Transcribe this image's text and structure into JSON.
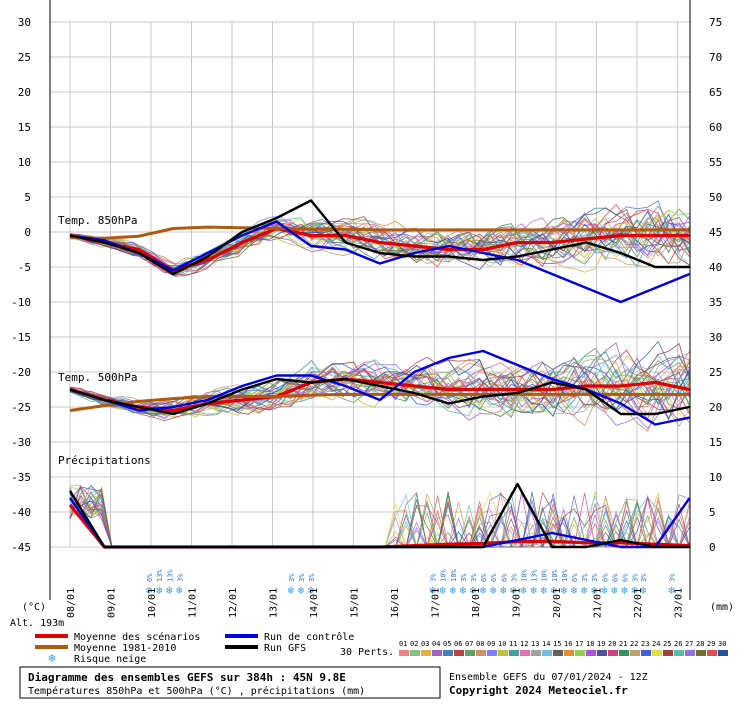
{
  "chart_data": {
    "type": "line",
    "title": "Diagramme des ensembles GEFS sur 384h : 45N 9.8E",
    "subtitle": "Températures 850hPa et 500hPa (°C) , précipitations (mm)",
    "run_info": "Ensemble GEFS du 07/01/2024 - 12Z",
    "copyright": "Copyright 2024 Meteociel.fr",
    "y_left_label": "(°C)",
    "y_right_label": "(mm)",
    "altitude": "Alt. 193m",
    "y_left_range": [
      -45,
      30
    ],
    "y_left_ticks": [
      "30",
      "25",
      "20",
      "15",
      "10",
      "5",
      "0",
      "-5",
      "-10",
      "-15",
      "-20",
      "-25",
      "-30",
      "-35",
      "-40",
      "-45"
    ],
    "y_right_ticks": [
      "75",
      "70",
      "65",
      "60",
      "55",
      "50",
      "45",
      "40",
      "35",
      "30",
      "25",
      "20",
      "15",
      "10",
      "5",
      "0"
    ],
    "x_dates": [
      "08/01",
      "09/01",
      "10/01",
      "11/01",
      "12/01",
      "13/01",
      "14/01",
      "15/01",
      "16/01",
      "17/01",
      "18/01",
      "19/01",
      "20/01",
      "21/01",
      "22/01",
      "23/01"
    ],
    "panel_labels": {
      "t850": "Temp. 850hPa",
      "t500": "Temp. 500hPa",
      "precip": "Précipitations"
    },
    "snow_risk": [
      {
        "day": 2.1,
        "labels": [
          "6%",
          "13%",
          "13%",
          "3%"
        ]
      },
      {
        "day": 5.6,
        "labels": [
          "3%",
          "3%",
          "3%"
        ]
      },
      {
        "day": 9.1,
        "labels": [
          "3%",
          "10%",
          "10%",
          "3%",
          "3%",
          "6%",
          "6%",
          "6%",
          "3%",
          "10%",
          "13%",
          "10%",
          "10%",
          "10%",
          "6%",
          "3%",
          "3%",
          "6%",
          "6%",
          "6%",
          "3%"
        ]
      },
      {
        "day": 14.3,
        "labels": [
          "3%"
        ]
      },
      {
        "day": 15.0,
        "labels": [
          "3%"
        ]
      }
    ],
    "legend": {
      "mean": "Moyenne des scénarios",
      "control": "Run de contrôle",
      "clim": "Moyenne 1981-2010",
      "gfs": "Run GFS",
      "snow": "Risque neige",
      "perts_label": "30 Perts."
    },
    "member_numbers": [
      "01",
      "02",
      "03",
      "04",
      "05",
      "06",
      "07",
      "08",
      "09",
      "10",
      "11",
      "12",
      "13",
      "14",
      "15",
      "16",
      "17",
      "18",
      "19",
      "20",
      "21",
      "22",
      "23",
      "24",
      "25",
      "26",
      "27",
      "28",
      "29",
      "30"
    ],
    "member_colors": [
      "#f08080",
      "#80c080",
      "#e0b040",
      "#a060c0",
      "#4080c0",
      "#c04040",
      "#60a060",
      "#d09060",
      "#8080ff",
      "#c0c040",
      "#40a0a0",
      "#e070b0",
      "#a0a0a0",
      "#70c0e0",
      "#606060",
      "#e09030",
      "#90d050",
      "#b050e0",
      "#5050a0",
      "#d04080",
      "#309060",
      "#c0a070",
      "#4060e0",
      "#e0e040",
      "#a04040",
      "#50c0a0",
      "#9070e0",
      "#707030",
      "#e05050",
      "#2050a0"
    ],
    "series": [
      {
        "name": "Moyenne des scénarios",
        "color": "#e00000",
        "t850": [
          -0.5,
          -1.5,
          -2.5,
          -5.5,
          -4,
          -1.5,
          0.5,
          -0.5,
          -0.5,
          -1.5,
          -2,
          -2.5,
          -2.5,
          -1.5,
          -1.5,
          -1,
          -0.5,
          -0.5,
          -0.5
        ],
        "t500": [
          -22.5,
          -24,
          -25,
          -25.5,
          -24.5,
          -24,
          -23.5,
          -21.5,
          -21,
          -21.5,
          -22,
          -22.5,
          -22.5,
          -22.5,
          -22.5,
          -22,
          -22,
          -21.5,
          -22.5
        ],
        "precip": [
          6,
          0,
          0,
          0,
          0,
          0,
          0,
          0,
          0,
          0,
          0.2,
          0.4,
          0.5,
          0.8,
          0.8,
          0.6,
          0.6,
          0.4,
          0.2
        ]
      },
      {
        "name": "Moyenne 1981-2010",
        "color": "#b05a10",
        "t850": [
          -0.8,
          -0.9,
          -0.6,
          0.5,
          0.7,
          0.6,
          0.5,
          0.4,
          0.4,
          0.3,
          0.3,
          0.3,
          0.3,
          0.3,
          0.3,
          0.3,
          0.3,
          0.3,
          0.3
        ],
        "t500": [
          -25.5,
          -24.8,
          -24.2,
          -23.8,
          -23.5,
          -23.5,
          -23.5,
          -23.3,
          -23.2,
          -23.2,
          -23.2,
          -23.2,
          -23.2,
          -23.2,
          -23.2,
          -23.2,
          -23.2,
          -23.2,
          -23.2
        ]
      },
      {
        "name": "Run de contrôle",
        "color": "#0000e0",
        "t850": [
          -0.5,
          -1.2,
          -3,
          -5.5,
          -3,
          -0.5,
          1.5,
          -2,
          -2.5,
          -4.5,
          -3,
          -2,
          -3,
          -4,
          -6,
          -8,
          -10,
          -8,
          -6
        ],
        "t500": [
          -22.5,
          -24,
          -25.5,
          -25,
          -24,
          -22,
          -20.5,
          -20.5,
          -22,
          -24,
          -20,
          -18,
          -17,
          -19,
          -21,
          -22.5,
          -24.5,
          -27.5,
          -26.5
        ],
        "precip": [
          7,
          0,
          0,
          0,
          0,
          0,
          0,
          0,
          0,
          0,
          0,
          0,
          0,
          1,
          2,
          1,
          0,
          0,
          7
        ]
      },
      {
        "name": "Run GFS",
        "color": "#000000",
        "t850": [
          -0.5,
          -1.5,
          -3,
          -6,
          -3.5,
          0,
          2,
          4.5,
          -1.5,
          -3,
          -3.5,
          -3.5,
          -4,
          -3.5,
          -2.5,
          -1.5,
          -3,
          -5,
          -5
        ],
        "t500": [
          -22.5,
          -24,
          -25,
          -26,
          -24.5,
          -22.5,
          -21,
          -21.5,
          -21,
          -22,
          -23,
          -24.5,
          -23.5,
          -23,
          -21.5,
          -22.5,
          -26,
          -26,
          -25
        ],
        "precip": [
          8,
          0,
          0,
          0,
          0,
          0,
          0,
          0,
          0,
          0,
          0,
          0,
          0,
          9,
          0,
          0,
          1,
          0,
          0
        ]
      }
    ]
  }
}
